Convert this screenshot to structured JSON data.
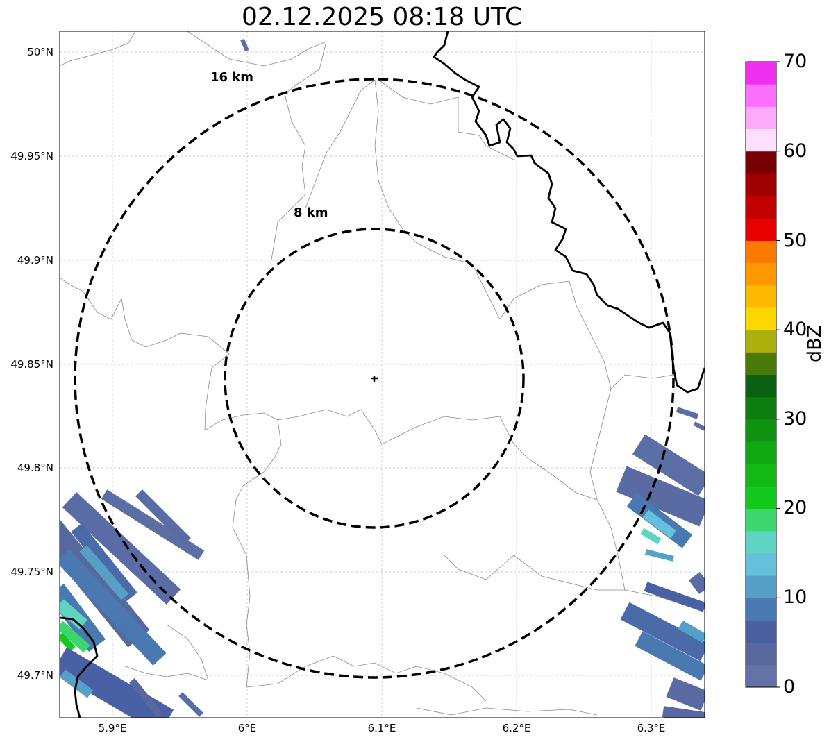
{
  "title": "02.12.2025 08:18 UTC",
  "map": {
    "radar_site_marker": "cross-icon",
    "range_rings": [
      {
        "label": "16 km",
        "radius_km": 16
      },
      {
        "label": "8 km",
        "radius_km": 8
      }
    ],
    "lat_ticks": [
      "50°N",
      "49.95°N",
      "49.9°N",
      "49.85°N",
      "49.8°N",
      "49.75°N",
      "49.7°N"
    ],
    "lon_ticks": [
      "5.9°E",
      "6°E",
      "6.1°E",
      "6.2°E",
      "6.3°E"
    ]
  },
  "colorbar": {
    "label": "dBZ",
    "ticks": [
      "0",
      "10",
      "20",
      "30",
      "40",
      "50",
      "60",
      "70"
    ],
    "range": [
      0,
      70
    ],
    "step": 2.5,
    "colors": [
      "#6373a8",
      "#59699f",
      "#4a609f",
      "#4a78b0",
      "#56a0c8",
      "#64c0dc",
      "#5fd4c2",
      "#3dd66e",
      "#15c81e",
      "#12b814",
      "#10a812",
      "#0f9412",
      "#0d7e10",
      "#0a6210",
      "#4a7b0a",
      "#adb00a",
      "#fdd800",
      "#fdb800",
      "#fd9800",
      "#fd7a00",
      "#e60000",
      "#c20000",
      "#a00000",
      "#780000",
      "#fde0fd",
      "#fdaafd",
      "#fd70fd",
      "#f030f0"
    ]
  }
}
